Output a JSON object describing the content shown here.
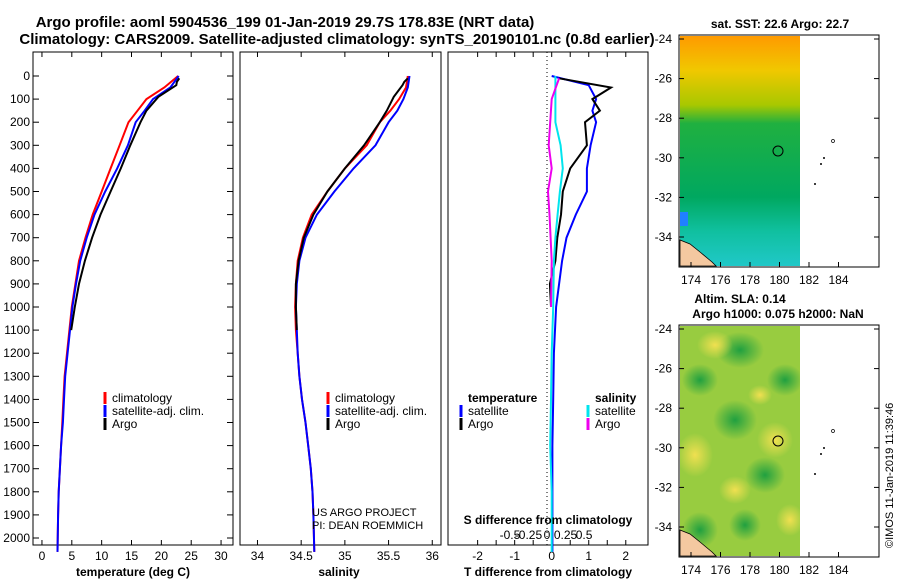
{
  "title": {
    "line1": "Argo profile: aoml 5904536_199 01-Jan-2019 29.7S 178.83E (NRT data)",
    "line2": "Climatology: CARS2009. Satellite-adjusted climatology: synTS_20190101.nc (0.8d earlier)"
  },
  "colors": {
    "climatology": "#ff0000",
    "satellite_clim": "#0000ff",
    "argo": "#000000",
    "satellite_T": "#0000ff",
    "satellite_S": "#00e5ee",
    "argo_S": "#ee00ee"
  },
  "depth_axis": {
    "ticks": [
      "0",
      "100",
      "200",
      "300",
      "400",
      "500",
      "600",
      "700",
      "800",
      "900",
      "1000",
      "1100",
      "1200",
      "1300",
      "1400",
      "1500",
      "1600",
      "1700",
      "1800",
      "1900",
      "2000"
    ]
  },
  "temperature_panel": {
    "xlabel": "temperature (deg C)",
    "xticks": [
      "0",
      "5",
      "10",
      "15",
      "20",
      "25",
      "30"
    ],
    "legend": [
      "climatology",
      "satellite-adj. clim.",
      "Argo"
    ]
  },
  "salinity_panel": {
    "xlabel": "salinity",
    "xticks": [
      "34",
      "34.5",
      "35",
      "35.5",
      "36"
    ],
    "legend": [
      "climatology",
      "satellite-adj. clim.",
      "Argo"
    ],
    "credit1": "US ARGO PROJECT",
    "credit2": "PI: DEAN ROEMMICH"
  },
  "difference_panel": {
    "xlabel": "T difference from climatology",
    "top_label": "S difference from climatology",
    "t_ticks": [
      "-2",
      "-1.5",
      "-1",
      "-0.5",
      "0",
      "0.5",
      "1",
      "1.5",
      "2"
    ],
    "s_ticks": [
      "-0.5",
      "-0.25",
      "0",
      "0.25",
      "0.5"
    ],
    "legend_t_title": "temperature",
    "legend_s_title": "salinity",
    "legend_t": [
      "satellite",
      "Argo"
    ],
    "legend_s": [
      "satellite",
      "Argo"
    ]
  },
  "sst_map": {
    "title": "sat. SST: 22.6 Argo: 22.7",
    "yticks": [
      "-24",
      "-26",
      "-28",
      "-30",
      "-32",
      "-34"
    ],
    "xticks": [
      "174",
      "176",
      "178",
      "180",
      "182",
      "184"
    ]
  },
  "sla_map": {
    "title1": "Altim. SLA: 0.14",
    "title2": "Argo h1000: 0.075 h2000: NaN",
    "yticks": [
      "-24",
      "-26",
      "-28",
      "-30",
      "-32",
      "-34"
    ],
    "xticks": [
      "174",
      "176",
      "178",
      "180",
      "182",
      "184"
    ]
  },
  "watermark": "©IMOS 11-Jan-2019 11:39:46",
  "chart_data": [
    {
      "type": "line",
      "title": "temperature",
      "xlabel": "temperature (deg C)",
      "ylabel": "depth",
      "xlim": [
        -1.5,
        32
      ],
      "ylim": [
        2060,
        0
      ],
      "series": [
        {
          "name": "climatology",
          "x": [
            22.8,
            20.5,
            17.5,
            16.0,
            14.5,
            13.0,
            11.5,
            10.0,
            8.5,
            7.3,
            6.2,
            5.6,
            5.0,
            4.6,
            4.2,
            3.8,
            3.6,
            3.4,
            3.2,
            3.0,
            2.8,
            2.7,
            2.6
          ],
          "y": [
            0,
            50,
            100,
            150,
            200,
            300,
            400,
            500,
            600,
            700,
            800,
            900,
            1000,
            1100,
            1200,
            1300,
            1400,
            1500,
            1600,
            1700,
            1800,
            1900,
            2060
          ]
        },
        {
          "name": "satellite-adj. clim.",
          "x": [
            22.9,
            21.5,
            18.6,
            17.2,
            15.7,
            14.4,
            12.6,
            10.6,
            8.8,
            7.5,
            6.4,
            5.7,
            5.1,
            4.7,
            4.3,
            3.9,
            3.7,
            3.5,
            3.2,
            3.0,
            2.8,
            2.7,
            2.6
          ],
          "y": [
            0,
            50,
            100,
            150,
            200,
            300,
            400,
            500,
            600,
            700,
            800,
            900,
            1000,
            1100,
            1200,
            1300,
            1400,
            1500,
            1600,
            1700,
            1800,
            1900,
            2060
          ]
        },
        {
          "name": "Argo",
          "x": [
            23.0,
            22.6,
            22.5,
            19.5,
            17.5,
            16.5,
            14.8,
            13.2,
            11.5,
            9.8,
            8.4,
            7.2,
            6.2,
            5.5,
            4.9
          ],
          "y": [
            10,
            25,
            40,
            90,
            150,
            200,
            300,
            400,
            500,
            600,
            700,
            800,
            900,
            1000,
            1100
          ]
        }
      ]
    },
    {
      "type": "line",
      "title": "salinity",
      "xlabel": "salinity",
      "ylabel": "depth",
      "xlim": [
        33.8,
        36.1
      ],
      "ylim": [
        2060,
        0
      ],
      "series": [
        {
          "name": "climatology",
          "x": [
            35.72,
            35.7,
            35.62,
            35.52,
            35.4,
            35.25,
            35.0,
            34.8,
            34.62,
            34.52,
            34.46,
            34.44,
            34.43,
            34.44,
            34.46,
            34.48,
            34.51,
            34.55,
            34.58,
            34.61,
            34.63,
            34.64,
            34.65
          ],
          "y": [
            0,
            50,
            100,
            150,
            200,
            300,
            400,
            500,
            600,
            700,
            800,
            900,
            1000,
            1100,
            1200,
            1300,
            1400,
            1500,
            1600,
            1700,
            1800,
            1900,
            2060
          ]
        },
        {
          "name": "satellite-adj. clim.",
          "x": [
            35.74,
            35.72,
            35.67,
            35.6,
            35.5,
            35.35,
            35.1,
            34.88,
            34.68,
            34.55,
            34.48,
            34.45,
            34.44,
            34.45,
            34.46,
            34.48,
            34.51,
            34.55,
            34.58,
            34.61,
            34.63,
            34.64,
            34.65
          ],
          "y": [
            0,
            50,
            100,
            150,
            200,
            300,
            400,
            500,
            600,
            700,
            800,
            900,
            1000,
            1100,
            1200,
            1300,
            1400,
            1500,
            1600,
            1700,
            1800,
            1900,
            2060
          ]
        },
        {
          "name": "Argo",
          "x": [
            35.72,
            35.68,
            35.66,
            35.56,
            35.48,
            35.4,
            35.22,
            35.0,
            34.8,
            34.64,
            34.53,
            34.47,
            34.44,
            34.44,
            34.45
          ],
          "y": [
            10,
            25,
            40,
            90,
            150,
            200,
            300,
            400,
            500,
            600,
            700,
            800,
            900,
            1000,
            1100
          ]
        }
      ]
    },
    {
      "type": "line",
      "title": "difference from climatology",
      "xlabel": "T difference from climatology",
      "ylabel": "depth",
      "xlim": [
        -2.8,
        2.6
      ],
      "ylim": [
        2060,
        0
      ],
      "series": [
        {
          "name": "T satellite",
          "x": [
            0,
            1.0,
            1.2,
            1.1,
            1.2,
            1.05,
            0.95,
            0.95,
            0.65,
            0.4,
            0.28,
            0.2,
            0.12,
            0.06,
            0.04,
            0.02,
            0.02,
            0.02,
            0.02,
            0.02
          ],
          "y": [
            0,
            40,
            100,
            150,
            200,
            300,
            400,
            500,
            600,
            700,
            800,
            900,
            1000,
            1200,
            1400,
            1600,
            1800,
            1900,
            2000,
            2060
          ]
        },
        {
          "name": "T Argo",
          "x": [
            0.2,
            1.6,
            1.1,
            1.3,
            0.9,
            0.95,
            0.5,
            0.3,
            0.25,
            0.15,
            0.1,
            -0.05,
            -0.02
          ],
          "y": [
            10,
            50,
            100,
            150,
            200,
            300,
            400,
            500,
            600,
            700,
            800,
            900,
            1000
          ]
        },
        {
          "name": "S satellite",
          "x": [
            0.05,
            0.05,
            0.12,
            0.15,
            0.11,
            0.08,
            0.05,
            0.03,
            0.02,
            0.0,
            -0.01,
            -0.02,
            0.0,
            0.0
          ],
          "y": [
            0,
            200,
            300,
            400,
            500,
            600,
            700,
            800,
            1000,
            1200,
            1400,
            1600,
            1800,
            2060
          ]
        },
        {
          "name": "S Argo",
          "x": [
            0.1,
            0.0,
            -0.04,
            0.0,
            -0.05,
            -0.03,
            0.0,
            -0.01
          ],
          "y": [
            10,
            100,
            300,
            400,
            500,
            600,
            800,
            1000
          ]
        }
      ]
    }
  ]
}
